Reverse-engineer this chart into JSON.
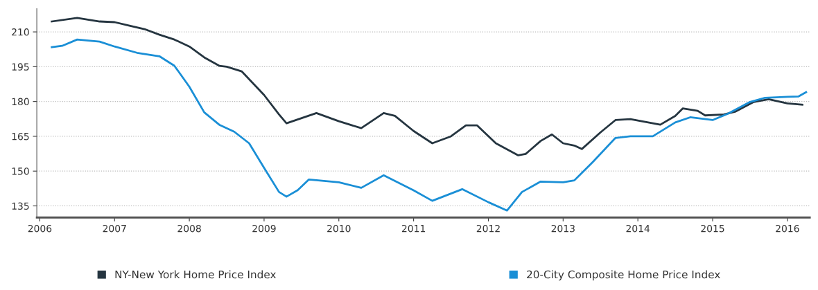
{
  "chart_data": {
    "type": "line",
    "xlim": [
      2005.96,
      2016.3
    ],
    "xticks": [
      2006,
      2007,
      2008,
      2009,
      2010,
      2011,
      2012,
      2013,
      2014,
      2015,
      2016
    ],
    "ylim": [
      130,
      220
    ],
    "yticks": [
      135,
      150,
      165,
      180,
      195,
      210
    ],
    "grid": "y",
    "legend": "bottom",
    "series": [
      {
        "name": "NY-New York Home Price Index",
        "color": "#253540",
        "x": [
          2006.16,
          2006.5,
          2006.8,
          2007.0,
          2007.2,
          2007.4,
          2007.6,
          2007.8,
          2008.0,
          2008.2,
          2008.4,
          2008.5,
          2008.7,
          2009.0,
          2009.2,
          2009.3,
          2009.7,
          2010.0,
          2010.3,
          2010.6,
          2010.75,
          2011.0,
          2011.25,
          2011.5,
          2011.7,
          2011.85,
          2012.1,
          2012.4,
          2012.5,
          2012.7,
          2012.85,
          2013.0,
          2013.15,
          2013.25,
          2013.5,
          2013.7,
          2013.9,
          2014.1,
          2014.3,
          2014.5,
          2014.6,
          2014.8,
          2014.9,
          2015.15,
          2015.3,
          2015.55,
          2015.75,
          2016.0,
          2016.2
        ],
        "values": [
          214.5,
          216,
          214.5,
          214.2,
          212.7,
          211.2,
          208.8,
          206.7,
          203.7,
          199,
          195.4,
          195,
          193,
          182.8,
          174.4,
          170.6,
          175,
          171.5,
          168.5,
          175,
          173.8,
          167.3,
          162,
          165,
          169.7,
          169.7,
          162,
          156.8,
          157.4,
          163,
          165.8,
          162,
          161,
          159.5,
          166.7,
          172,
          172.4,
          171.2,
          170,
          173.8,
          177,
          176,
          174,
          174.4,
          175.6,
          179.8,
          181,
          179.2,
          178.6
        ]
      },
      {
        "name": "20-City Composite Home Price Index",
        "color": "#1a8fd6",
        "x": [
          2006.16,
          2006.3,
          2006.5,
          2006.8,
          2007.0,
          2007.3,
          2007.6,
          2007.8,
          2008.0,
          2008.2,
          2008.4,
          2008.6,
          2008.8,
          2009.0,
          2009.2,
          2009.3,
          2009.45,
          2009.6,
          2010.0,
          2010.3,
          2010.6,
          2011.0,
          2011.25,
          2011.65,
          2012.0,
          2012.25,
          2012.45,
          2012.7,
          2013.0,
          2013.15,
          2013.4,
          2013.7,
          2013.9,
          2014.2,
          2014.5,
          2014.7,
          2015.0,
          2015.2,
          2015.5,
          2015.7,
          2016.0,
          2016.15,
          2016.25
        ],
        "values": [
          203.4,
          204,
          206.7,
          205.8,
          203.7,
          201,
          199.5,
          195.4,
          186.4,
          175.3,
          170,
          167,
          162,
          151.4,
          141,
          139,
          141.8,
          146.4,
          145.2,
          142.8,
          148.2,
          141.7,
          137.2,
          142.2,
          136.6,
          133,
          141,
          145.5,
          145.2,
          146,
          154,
          164.3,
          165,
          165,
          171,
          173.2,
          172,
          174.7,
          179.8,
          181.6,
          182,
          182.2,
          184
        ]
      }
    ]
  }
}
